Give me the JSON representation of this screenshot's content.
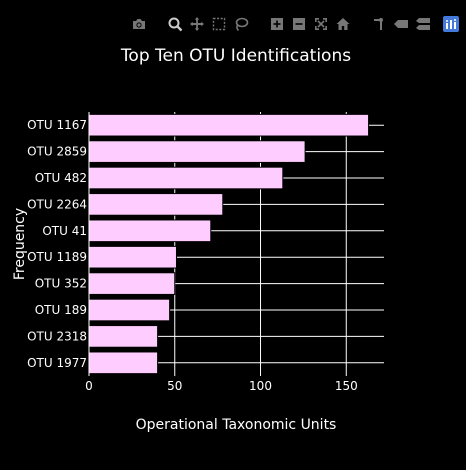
{
  "modebar": {
    "buttons": [
      {
        "icon": "camera-icon",
        "group": 0,
        "active": false
      },
      {
        "icon": "zoom-icon",
        "group": 1,
        "active": true
      },
      {
        "icon": "pan-icon",
        "group": 1,
        "active": false
      },
      {
        "icon": "box-select-icon",
        "group": 1,
        "active": false
      },
      {
        "icon": "lasso-select-icon",
        "group": 1,
        "active": false
      },
      {
        "icon": "zoom-in-icon",
        "group": 2,
        "active": false
      },
      {
        "icon": "zoom-out-icon",
        "group": 2,
        "active": false
      },
      {
        "icon": "autoscale-icon",
        "group": 2,
        "active": false
      },
      {
        "icon": "home-icon",
        "group": 2,
        "active": false
      },
      {
        "icon": "spike-lines-icon",
        "group": 3,
        "active": false
      },
      {
        "icon": "hover-closest-icon",
        "group": 3,
        "active": false
      },
      {
        "icon": "hover-compare-icon",
        "group": 3,
        "active": false
      }
    ],
    "logo_icon": "plotly-logo-icon"
  },
  "colors": {
    "background": "#000000",
    "bar_fill": "#ffccff",
    "bar_outline": "#000000",
    "grid": "#ffffff",
    "text": "#ffffff",
    "modebar_icon": "#777777",
    "modebar_icon_active": "#cccccc",
    "logo": "#447adb"
  },
  "chart_data": {
    "type": "bar",
    "orientation": "horizontal",
    "title": "Top Ten OTU Identifications",
    "xlabel": "Operational Taxonomic Units",
    "ylabel": "Frequency",
    "categories": [
      "OTU 1167",
      "OTU 2859",
      "OTU 482",
      "OTU 2264",
      "OTU 41",
      "OTU 1189",
      "OTU 352",
      "OTU 189",
      "OTU 2318",
      "OTU 1977"
    ],
    "values": [
      163,
      126,
      113,
      78,
      71,
      51,
      50,
      47,
      40,
      40
    ],
    "xlim": [
      0,
      172
    ],
    "xticks": [
      0,
      50,
      100,
      150
    ],
    "grid": true
  }
}
